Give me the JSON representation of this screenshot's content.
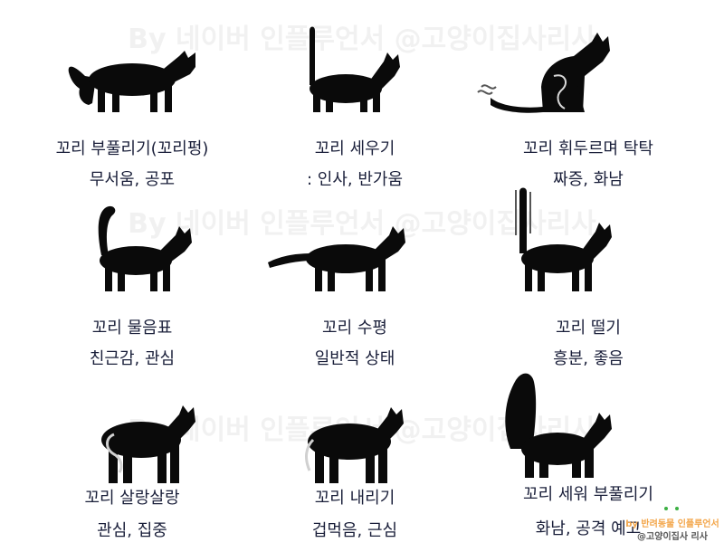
{
  "watermark": "By 네이버 인플루언서 @고양이집사리사",
  "cards": [
    {
      "title": "꼬리 부풀리기(꼬리펑)",
      "meaning": "무서움, 공포"
    },
    {
      "title": "꼬리 세우기",
      "meaning": ": 인사, 반가움"
    },
    {
      "title": "꼬리 휘두르며 탁탁",
      "meaning": "짜증, 화남"
    },
    {
      "title": "꼬리 물음표",
      "meaning": "친근감, 관심"
    },
    {
      "title": "꼬리 수평",
      "meaning": "일반적 상태"
    },
    {
      "title": "꼬리 떨기",
      "meaning": "흥분, 좋음"
    },
    {
      "title": "꼬리 살랑살랑",
      "meaning": "관심, 집중"
    },
    {
      "title": "꼬리 내리기",
      "meaning": "겁먹음, 근심"
    },
    {
      "title": "꼬리 세워 부풀리기",
      "meaning": "화남, 공격 예고"
    }
  ],
  "badge": {
    "line1": "by 반려동물 인플루언서",
    "line2": "@고양이집사 리사"
  },
  "colors": {
    "text": "#1a1f3a",
    "silhouette": "#0a0a0a",
    "badge_accent": "#f3a64a"
  }
}
